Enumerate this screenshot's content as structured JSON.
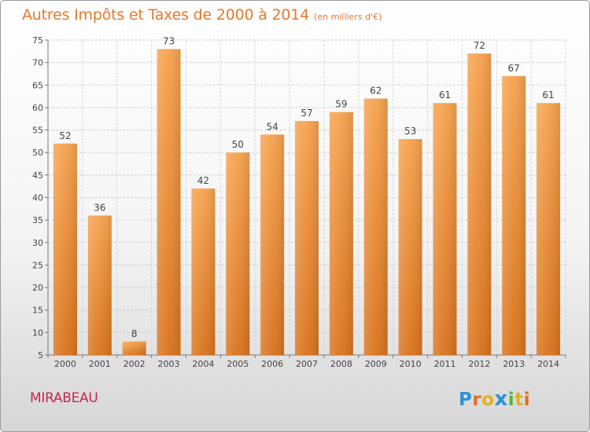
{
  "chart_data": {
    "type": "bar",
    "title": "Autres Impôts et Taxes de 2000 à 2014",
    "subtitle": "(en milliers d'€)",
    "categories": [
      "2000",
      "2001",
      "2002",
      "2003",
      "2004",
      "2005",
      "2006",
      "2007",
      "2008",
      "2009",
      "2010",
      "2011",
      "2012",
      "2013",
      "2014"
    ],
    "values": [
      52,
      36,
      8,
      73,
      42,
      50,
      54,
      57,
      59,
      62,
      53,
      61,
      72,
      67,
      61
    ],
    "ylim": [
      5,
      75
    ],
    "yticks": [
      5,
      10,
      15,
      20,
      25,
      30,
      35,
      40,
      45,
      50,
      55,
      60,
      65,
      70,
      75
    ],
    "grid": true,
    "legend": "none",
    "bar_color": "#f08a2c"
  },
  "place_name": "MIRABEAU",
  "brand": "Proxiti"
}
